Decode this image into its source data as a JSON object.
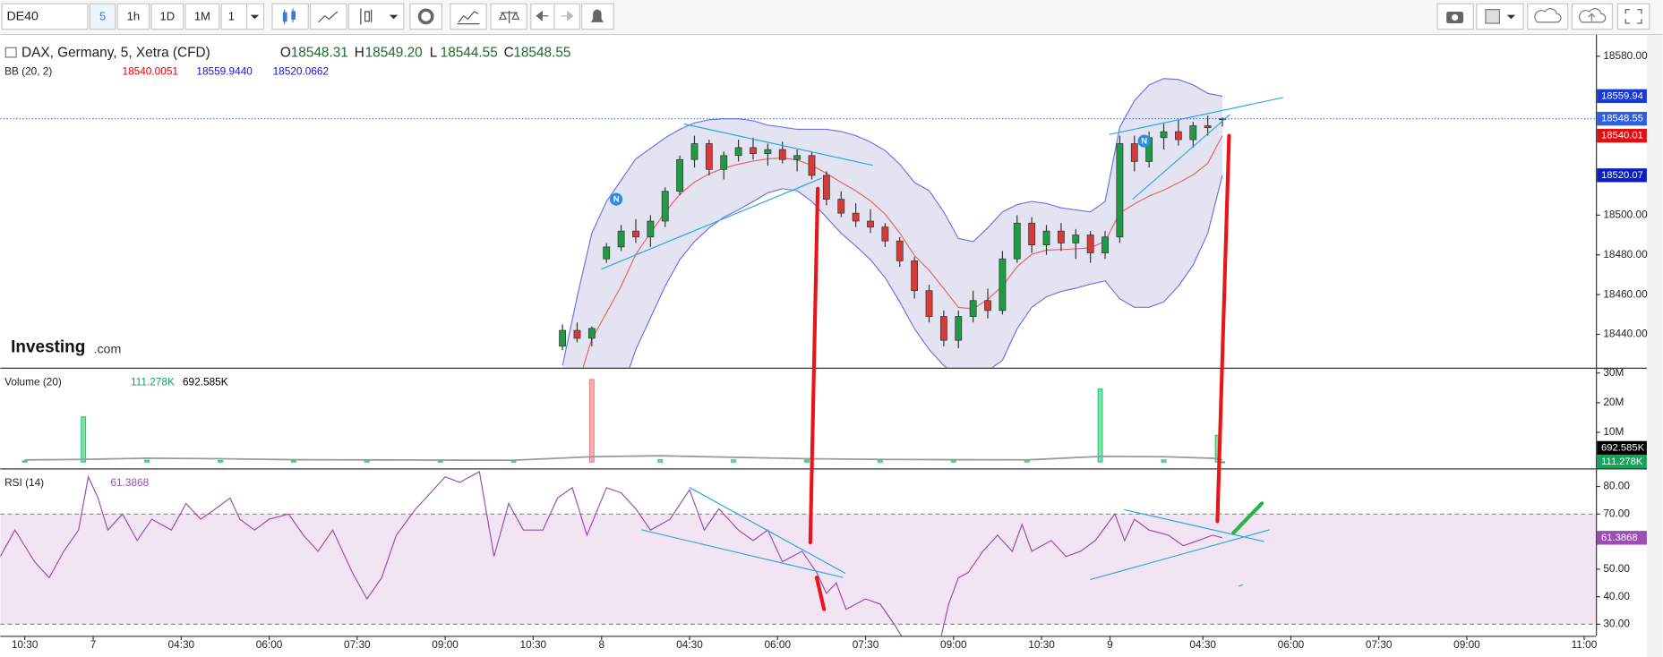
{
  "toolbar": {
    "symbol": "DE40",
    "intervals": [
      "5",
      "1h",
      "1D",
      "1M"
    ],
    "multiplier": "1"
  },
  "chart_data": [
    {
      "type": "candlestick",
      "title": "DAX, Germany, 5, Xetra (CFD)",
      "legend_labels": [
        "O",
        "H",
        "L",
        "C"
      ],
      "legend_values": [
        18548.31,
        {
          "value": 18549.2,
          "label": "18549.20"
        },
        18544.55,
        18548.55
      ],
      "indicator": {
        "name": "BB (20, 2)",
        "values": [
          18540.0051,
          {
            "value": 18559.944,
            "label": "18559.9440"
          },
          18520.0662
        ],
        "colors": [
          "#e00000",
          "#1414c8",
          "#1414c8"
        ]
      },
      "watermark": [
        "Investing",
        ".com"
      ],
      "news_markers": [
        {
          "label": "N",
          "x": 126,
          "y": 18508
        },
        {
          "label": "N",
          "x": 234,
          "y": 18537.3
        }
      ],
      "up_color": "#1f9a45",
      "down_color": "#d83a3a",
      "x": [
        115,
        118,
        121,
        124,
        127,
        130,
        133,
        136,
        139,
        142,
        145,
        148,
        151,
        154,
        157,
        160,
        163,
        166,
        169,
        172,
        175,
        178,
        181,
        184,
        187,
        190,
        193,
        196,
        199,
        202,
        205,
        208,
        211,
        214,
        217,
        220,
        223,
        226,
        229,
        232,
        235,
        238,
        241,
        244,
        247,
        250
      ],
      "open": [
        18434,
        18442,
        18438,
        18478,
        18484,
        18492,
        18489,
        18497,
        18512,
        18528,
        18536,
        18523,
        18530,
        18534,
        18531,
        18533,
        18528,
        18530,
        18520,
        18508,
        18501,
        18497,
        18494,
        18487,
        18477,
        18462,
        18449,
        18437,
        18449,
        18457,
        18452,
        18478,
        18496,
        18485,
        18492,
        18486,
        18490,
        18481,
        18489,
        18536,
        18527,
        18539,
        18542,
        18538,
        18545,
        18548.31
      ],
      "high": [
        18445,
        18446,
        18444,
        18486,
        18495,
        18498,
        18500,
        18514,
        18530,
        18540,
        18538,
        18532,
        18538,
        18539,
        18536,
        18537,
        18533,
        18532,
        18522,
        18512,
        18506,
        18503,
        18496,
        18489,
        18479,
        18465,
        18452,
        18452,
        18462,
        18463,
        18482,
        18500,
        18499,
        18495,
        18496,
        18493,
        18492,
        18492,
        18540,
        18540,
        18542,
        18546,
        18548,
        18547,
        18550,
        18549.2
      ],
      "low": [
        18432,
        18436,
        18434,
        18476,
        18482,
        18486,
        18484,
        18494,
        18510,
        18524,
        18520,
        18518,
        18527,
        18528,
        18525,
        18526,
        18522,
        18518,
        18505,
        18499,
        18494,
        18491,
        18484,
        18474,
        18458,
        18446,
        18434,
        18433,
        18446,
        18448,
        18450,
        18476,
        18481,
        18480,
        18482,
        18478,
        18476,
        18478,
        18486,
        18522,
        18524,
        18533,
        18535,
        18534,
        18540,
        18544.55
      ],
      "close": [
        18442,
        18438,
        18443,
        18484,
        18492,
        18489,
        18497,
        18512,
        18528,
        18536,
        18523,
        18530,
        18534,
        18531,
        18533,
        18528,
        18530,
        18520,
        18508,
        18501,
        18497,
        18494,
        18487,
        18477,
        18462,
        18449,
        18437,
        18449,
        18457,
        18452,
        18478,
        18496,
        18485,
        18492,
        18486,
        18490,
        18481,
        18489,
        18536,
        18527,
        18539,
        18542,
        18538,
        18545,
        18544,
        18548.55
      ],
      "bands": {
        "line_color": "#6f73e0",
        "mid_color": "#e06868",
        "fill": "#dcdcef",
        "upper": [
          18424.3,
          18458.9,
          18490.9,
          18506.9,
          18517.6,
          18528.3,
          18533.6,
          18538.9,
          18543.2,
          18546.4,
          18548,
          18548.5,
          18548.5,
          18547.5,
          18545.3,
          18544.3,
          18543.2,
          18543.2,
          18543.2,
          18542.1,
          18540,
          18536.8,
          18532.5,
          18525.6,
          18516.5,
          18512.3,
          18501.6,
          18488.3,
          18486.7,
          18493.6,
          18501.6,
          18505.3,
          18506.9,
          18505.9,
          18503.7,
          18502.7,
          18501.6,
          18506.9,
          18544.3,
          18557.6,
          18565.6,
          18568.8,
          18568.3,
          18565.6,
          18561.3,
          18559.9
        ],
        "middle": [
          18388.3,
          18413.6,
          18437.6,
          18450.9,
          18464.3,
          18480.3,
          18491,
          18501.6,
          18510.4,
          18516.6,
          18520.8,
          18523.7,
          18525.6,
          18527.2,
          18528.3,
          18528.8,
          18527.8,
          18525.1,
          18521.1,
          18516.5,
          18512.3,
          18507.2,
          18500.5,
          18491,
          18479.7,
          18472.3,
          18463,
          18453.6,
          18452.8,
          18457.6,
          18464.3,
          18474.1,
          18480.3,
          18482.4,
          18482.7,
          18483,
          18483.5,
          18486.9,
          18501.1,
          18505.6,
          18509.6,
          18512.6,
          18516.3,
          18520.3,
          18526.1,
          18540
        ],
        "lower": [
          18352.3,
          18368.3,
          18384.3,
          18394.9,
          18410.9,
          18432.3,
          18448.3,
          18464.3,
          18477.6,
          18486.7,
          18493.6,
          18498.9,
          18502.7,
          18506.9,
          18511.2,
          18513.3,
          18512.3,
          18506.9,
          18498.9,
          18490.9,
          18484.5,
          18477.6,
          18468.5,
          18456.3,
          18442.9,
          18432.3,
          18424.3,
          18418.9,
          18418.9,
          18421.6,
          18426.9,
          18442.9,
          18453.6,
          18458.9,
          18461.6,
          18463.2,
          18465.3,
          18466.9,
          18457.9,
          18453.6,
          18453.6,
          18456.3,
          18464.3,
          18474.9,
          18490.9,
          18520.1
        ]
      },
      "ylim": [
        18423.2,
        18590.7
      ],
      "yticks": [
        {
          "value": 18440,
          "label": "18440.00"
        },
        {
          "value": 18460,
          "label": "18460.00"
        },
        {
          "value": 18480,
          "label": "18480.00"
        },
        {
          "value": 18500,
          "label": "18500.00"
        },
        {
          "value": 18580,
          "label": "18580.00"
        }
      ],
      "price_tags": [
        {
          "value": 18559.94,
          "color": "#1a3ad6"
        },
        {
          "value": 18548.55,
          "color": "#2f5fe0"
        },
        {
          "value": 18540.01,
          "color": "#e01010"
        },
        {
          "value": 18520.07,
          "color": "#0b1ec0"
        }
      ]
    },
    {
      "type": "bar",
      "title": "Volume (20)",
      "legend_values": [
        {
          "value": 111278,
          "label": "111.278K"
        },
        {
          "value": 692585,
          "label": "692.585K"
        }
      ],
      "legend_colors": [
        "#16a35a",
        "#000000"
      ],
      "x": [
        5,
        17,
        30,
        45,
        60,
        75,
        90,
        105,
        121,
        135,
        150,
        165,
        180,
        195,
        210,
        225,
        238,
        249,
        250
      ],
      "values": [
        400000,
        15200000,
        600000,
        500000,
        450000,
        500000,
        350000,
        400000,
        27800000,
        800000,
        700000,
        650000,
        600000,
        500000,
        550000,
        24600000,
        700000,
        9000000,
        111278
      ],
      "colors": [
        "#2ecc71",
        "#2ecc71",
        "#2ecc71",
        "#2ecc71",
        "#2ecc71",
        "#2ecc71",
        "#2ecc71",
        "#2ecc71",
        "#f08080",
        "#2ecc71",
        "#2ecc71",
        "#2ecc71",
        "#2ecc71",
        "#2ecc71",
        "#2ecc71",
        "#2ecc71",
        "#2ecc71",
        "#2ecc71",
        "#2ecc71"
      ],
      "ma": [
        700000,
        900000,
        1300000,
        1100000,
        800000,
        700000,
        650000,
        600000,
        1800000,
        2100000,
        1600000,
        1100000,
        900000,
        800000,
        700000,
        1900000,
        1800000,
        1200000,
        692585
      ],
      "ma_color": "#9a9a9a",
      "ylim": [
        -2140000,
        31430000
      ],
      "yticks": [
        {
          "value": 10000000,
          "label": "10M"
        },
        {
          "value": 20000000,
          "label": "20M"
        },
        {
          "value": 30000000,
          "label": "30M"
        }
      ]
    },
    {
      "type": "line",
      "title": "RSI (14)",
      "legend_value": 61.3868,
      "color": "#9b4db5",
      "band": [
        30,
        70
      ],
      "band_fill": "#f3e4f3",
      "x": [
        0,
        3,
        7,
        10,
        13,
        16,
        18,
        20,
        22,
        25,
        28,
        31,
        35,
        38,
        41,
        44,
        47,
        49,
        52,
        55,
        59,
        62,
        65,
        68,
        72,
        75,
        78,
        81,
        85,
        88,
        91,
        94,
        98,
        101,
        104,
        107,
        111,
        114,
        117,
        120,
        124,
        127,
        130,
        133,
        137,
        141,
        144,
        147,
        151,
        154,
        157,
        160,
        164,
        167,
        169,
        171,
        173,
        177,
        180,
        183,
        185,
        189,
        192,
        194,
        196,
        198,
        201,
        204,
        207,
        209,
        211,
        215,
        218,
        221,
        224,
        228,
        230,
        232,
        235,
        239,
        242,
        245,
        248,
        250
      ],
      "values": [
        54.6,
        64.2,
        52.7,
        46.9,
        56.5,
        64.2,
        83.5,
        75.8,
        64.2,
        70,
        60.4,
        68.1,
        64.2,
        73.8,
        68.1,
        71.9,
        75.8,
        68.1,
        64.2,
        68.1,
        70,
        62.3,
        56.5,
        64.2,
        48.8,
        39.2,
        46.9,
        62.3,
        71.9,
        77.7,
        83.5,
        81.5,
        85.4,
        54.6,
        73.8,
        64.2,
        64.2,
        75.8,
        79.6,
        62.3,
        79.6,
        77.7,
        71.9,
        64.2,
        68.1,
        78.8,
        64.2,
        71.9,
        64.2,
        60.4,
        64.2,
        52.7,
        56.5,
        48.8,
        41.2,
        45,
        35.4,
        39.2,
        37.3,
        29.6,
        23.8,
        14.2,
        21.9,
        37.3,
        46.9,
        48.8,
        56.5,
        62.3,
        56.5,
        66.2,
        56.5,
        60.4,
        54.6,
        56.5,
        60.4,
        70,
        60.4,
        68.1,
        64.2,
        62.3,
        58.5,
        60.4,
        62.3,
        61.3868
      ],
      "ylim": [
        25.8,
        86.2
      ],
      "yticks": [
        {
          "value": 30,
          "label": "30.00"
        },
        {
          "value": 40,
          "label": "40.00"
        },
        {
          "value": 50,
          "label": "50.00"
        },
        {
          "value": 60,
          "label": "60.00"
        },
        {
          "value": 70,
          "label": "70.00"
        },
        {
          "value": 80,
          "label": "80.00"
        }
      ],
      "xlim": [
        0,
        326.4
      ],
      "xticks": [
        {
          "value": 5,
          "label": "10:30"
        },
        {
          "value": 19,
          "label": "7"
        },
        {
          "value": 37,
          "label": "04:30"
        },
        {
          "value": 55,
          "label": "06:00"
        },
        {
          "value": 73,
          "label": "07:30"
        },
        {
          "value": 91,
          "label": "09:00"
        },
        {
          "value": 109,
          "label": "10:30"
        },
        {
          "value": 123,
          "label": "8"
        },
        {
          "value": 141,
          "label": "04:30"
        },
        {
          "value": 159,
          "label": "06:00"
        },
        {
          "value": 177,
          "label": "07:30"
        },
        {
          "value": 195,
          "label": "09:00"
        },
        {
          "value": 213,
          "label": "10:30"
        },
        {
          "value": 227,
          "label": "9"
        },
        {
          "value": 246,
          "label": "04:30"
        },
        {
          "value": 264,
          "label": "06:00"
        },
        {
          "value": 282,
          "label": "07:30"
        },
        {
          "value": 300,
          "label": "09:00"
        },
        {
          "value": 324,
          "label": "11:00"
        }
      ]
    }
  ]
}
